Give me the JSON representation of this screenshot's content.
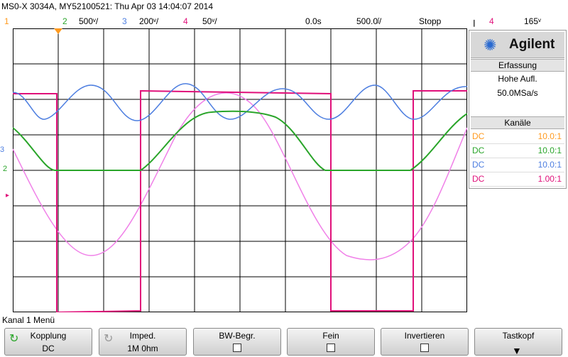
{
  "title": "MS0-X 3034A, MY52100521: Thu Apr 03 14:04:07 2014",
  "status": {
    "ch1_num": "1",
    "ch2_num": "2",
    "ch2_scale": "500ᵛ/",
    "ch3_num": "3",
    "ch3_scale": "200ᵛ/",
    "ch4_num": "4",
    "ch4_scale": "50ᵛ/",
    "delay": "0.0s",
    "timebase": "500.0ᶴ/",
    "run_state": "Stopp",
    "trig_source": "4",
    "trig_level": "165ᵛ"
  },
  "panel": {
    "brand": "Agilent",
    "acq_header": "Erfassung",
    "acq_mode": "Hohe Aufl.",
    "acq_rate": "50.0MSa/s",
    "channels_header": "Kanäle",
    "channels": [
      {
        "coupling": "DC",
        "probe": "10.0:1",
        "color": "#ff9a1e"
      },
      {
        "coupling": "DC",
        "probe": "10.0:1",
        "color": "#2aa52a"
      },
      {
        "coupling": "DC",
        "probe": "10.0:1",
        "color": "#4d7ee0"
      },
      {
        "coupling": "DC",
        "probe": "1.00:1",
        "color": "#e0107a"
      }
    ]
  },
  "menu_title": "Kanal 1 Menü",
  "softkeys": [
    {
      "label": "Kopplung",
      "value": "DC"
    },
    {
      "label": "Imped.",
      "value": "1M 0hm"
    },
    {
      "label": "BW-Begr.",
      "value": ""
    },
    {
      "label": "Fein",
      "value": ""
    },
    {
      "label": "Invertieren",
      "value": ""
    },
    {
      "label": "Tastkopf",
      "value": ""
    }
  ],
  "colors": {
    "ch1": "#ff9a1e",
    "ch2": "#2aa52a",
    "ch3": "#4d7ee0",
    "ch4": "#e0107a",
    "math": "#f080e8",
    "grid": "#000000"
  },
  "icons": {
    "logo": "agilent-spark-icon",
    "rotary": "rotary-knob-icon",
    "down": "down-arrow-icon"
  }
}
